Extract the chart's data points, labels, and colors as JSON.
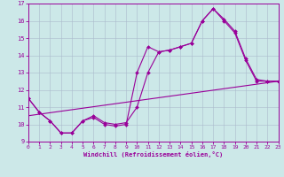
{
  "background_color": "#cce8e8",
  "line_color": "#990099",
  "grid_color": "#aabbcc",
  "xlim": [
    0,
    23
  ],
  "ylim": [
    9,
    17
  ],
  "xticks": [
    0,
    1,
    2,
    3,
    4,
    5,
    6,
    7,
    8,
    9,
    10,
    11,
    12,
    13,
    14,
    15,
    16,
    17,
    18,
    19,
    20,
    21,
    22,
    23
  ],
  "yticks": [
    9,
    10,
    11,
    12,
    13,
    14,
    15,
    16,
    17
  ],
  "xlabel": "Windchill (Refroidissement éolien,°C)",
  "series1_x": [
    0,
    1,
    2,
    3,
    4,
    5,
    6,
    7,
    8,
    9,
    10,
    11,
    12,
    13,
    14,
    15,
    16,
    17,
    18,
    19,
    20,
    21,
    22,
    23
  ],
  "series1_y": [
    11.5,
    10.7,
    10.2,
    9.5,
    9.5,
    10.2,
    10.4,
    10.0,
    9.9,
    10.0,
    13.0,
    14.5,
    14.2,
    14.3,
    14.5,
    14.7,
    16.0,
    16.7,
    16.0,
    15.3,
    13.7,
    12.5,
    12.5,
    12.5
  ],
  "series2_x": [
    0,
    1,
    2,
    3,
    4,
    5,
    6,
    7,
    8,
    9,
    10,
    11,
    12,
    13,
    14,
    15,
    16,
    17,
    18,
    19,
    20,
    21,
    22,
    23
  ],
  "series2_y": [
    11.5,
    10.7,
    10.2,
    9.5,
    9.5,
    10.2,
    10.5,
    10.1,
    10.0,
    10.1,
    11.0,
    13.0,
    14.2,
    14.3,
    14.5,
    14.7,
    16.0,
    16.7,
    16.1,
    15.4,
    13.8,
    12.6,
    12.5,
    12.5
  ],
  "series3_x": [
    0,
    23
  ],
  "series3_y": [
    10.5,
    12.5
  ],
  "marker": "D",
  "markersize": 2.0,
  "linewidth": 0.8
}
